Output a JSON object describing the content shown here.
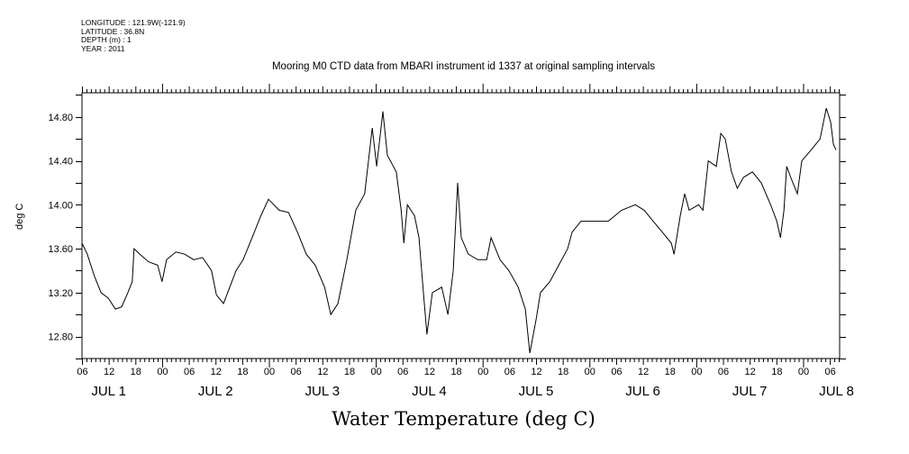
{
  "header": {
    "longitude": "LONGITUDE : 121.9W(-121.9)",
    "latitude": "LATITUDE : 36.8N",
    "depth": "DEPTH (m) : 1",
    "year": "YEAR : 2011"
  },
  "chart_data": {
    "type": "line",
    "title": "Mooring M0 CTD data from MBARI instrument id 1337 at original sampling intervals",
    "xlabel": "Water Temperature (deg C)",
    "ylabel": "deg C",
    "x_units": "hours since JUL 1 00:00, 2011",
    "xlim": [
      6,
      176.2
    ],
    "ylim": [
      12.6,
      15.02
    ],
    "y_ticks": [
      12.8,
      13.2,
      13.6,
      14.0,
      14.4,
      14.8
    ],
    "y_tick_labels": [
      "12.80",
      "13.20",
      "13.60",
      "14.00",
      "14.40",
      "14.80"
    ],
    "x_hour_labels": [
      "06",
      "12",
      "18",
      "00"
    ],
    "day_labels": [
      {
        "hour": 12,
        "label": "JUL  1"
      },
      {
        "hour": 36,
        "label": "JUL  2"
      },
      {
        "hour": 60,
        "label": "JUL  3"
      },
      {
        "hour": 84,
        "label": "JUL  4"
      },
      {
        "hour": 108,
        "label": "JUL  5"
      },
      {
        "hour": 132,
        "label": "JUL  6"
      },
      {
        "hour": 156,
        "label": "JUL  7"
      },
      {
        "hour": 175.5,
        "label": "JUL  8"
      }
    ],
    "grid": false,
    "series": [
      {
        "name": "Water Temperature",
        "x": [
          6.0,
          7.2,
          8.8,
          10.3,
          11.9,
          13.5,
          14.9,
          16.3,
          17.3,
          17.7,
          19.0,
          21.0,
          23.0,
          24.0,
          25.0,
          27.1,
          29.1,
          31.1,
          33.1,
          35.1,
          36.2,
          37.8,
          39.2,
          40.6,
          42.2,
          44.2,
          46.2,
          47.9,
          50.3,
          52.4,
          54.4,
          56.4,
          58.4,
          60.5,
          61.9,
          63.5,
          65.5,
          67.5,
          69.5,
          71.2,
          72.2,
          73.6,
          74.6,
          76.6,
          77.7,
          78.3,
          79.1,
          80.7,
          81.7,
          82.7,
          83.5,
          84.7,
          86.8,
          88.2,
          89.4,
          90.4,
          91.2,
          92.8,
          94.9,
          96.9,
          97.9,
          99.9,
          101.9,
          104.0,
          105.6,
          106.6,
          108.0,
          109.0,
          111.1,
          113.1,
          115.1,
          116.1,
          118.1,
          121.2,
          124.2,
          127.2,
          130.3,
          132.3,
          134.3,
          136.4,
          138.4,
          139.0,
          140.4,
          141.4,
          142.4,
          144.5,
          145.5,
          146.7,
          148.5,
          149.5,
          150.5,
          151.9,
          153.2,
          154.6,
          156.6,
          158.6,
          160.7,
          162.1,
          162.9,
          163.7,
          164.3,
          165.7,
          166.7,
          167.7,
          169.8,
          171.8,
          173.2,
          174.2,
          174.8,
          175.4
        ],
        "values": [
          13.65,
          13.55,
          13.35,
          13.2,
          13.15,
          13.05,
          13.07,
          13.2,
          13.3,
          13.6,
          13.55,
          13.48,
          13.45,
          13.3,
          13.5,
          13.57,
          13.55,
          13.5,
          13.52,
          13.4,
          13.18,
          13.1,
          13.25,
          13.4,
          13.5,
          13.7,
          13.9,
          14.05,
          13.95,
          13.93,
          13.75,
          13.55,
          13.45,
          13.25,
          13.0,
          13.1,
          13.5,
          13.95,
          14.1,
          14.7,
          14.35,
          14.85,
          14.45,
          14.3,
          13.95,
          13.65,
          14.0,
          13.9,
          13.7,
          13.2,
          12.82,
          13.2,
          13.25,
          13.0,
          13.4,
          14.2,
          13.7,
          13.55,
          13.5,
          13.5,
          13.7,
          13.5,
          13.4,
          13.25,
          13.05,
          12.65,
          12.95,
          13.2,
          13.3,
          13.45,
          13.6,
          13.75,
          13.85,
          13.85,
          13.85,
          13.95,
          14.0,
          13.95,
          13.85,
          13.75,
          13.65,
          13.55,
          13.9,
          14.1,
          13.95,
          14.0,
          13.95,
          14.4,
          14.35,
          14.65,
          14.6,
          14.3,
          14.15,
          14.25,
          14.3,
          14.2,
          14.0,
          13.85,
          13.7,
          13.95,
          14.35,
          14.2,
          14.1,
          14.4,
          14.5,
          14.6,
          14.88,
          14.75,
          14.55,
          14.5
        ]
      }
    ]
  }
}
